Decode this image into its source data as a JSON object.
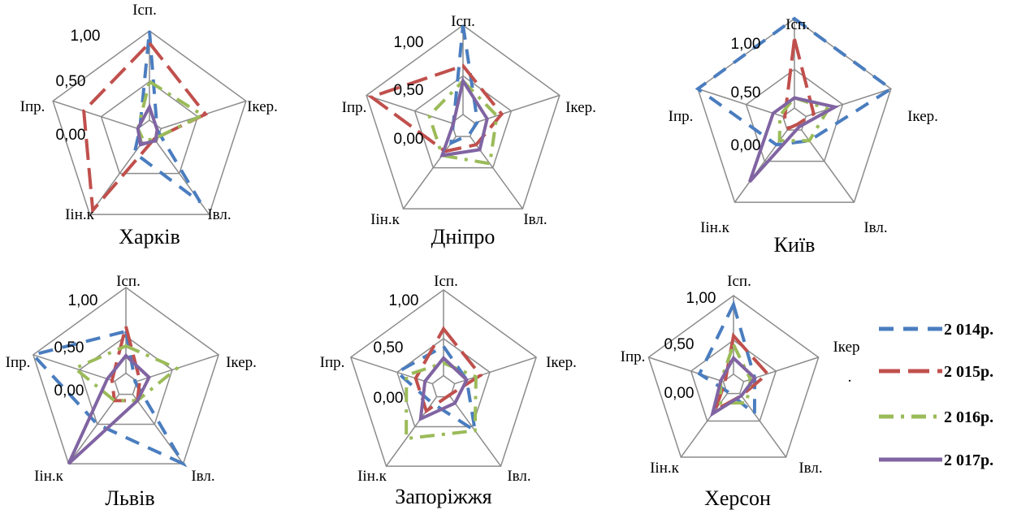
{
  "chart_data": {
    "type": "radar",
    "axes": [
      "Ісп.",
      "Ікер.",
      "Івл.",
      "Ін.к",
      "Іпр."
    ],
    "tick_labels": [
      "1,00",
      "0,50",
      "0,00"
    ],
    "rlim": [
      0,
      1
    ],
    "legend_position": "right",
    "series_style": [
      {
        "name": "2 014р.",
        "color": "#4a7dbf",
        "dash": "dashed"
      },
      {
        "name": "2 015р.",
        "color": "#c0504d",
        "dash": "longdash"
      },
      {
        "name": "2 016р.",
        "color": "#9bbb59",
        "dash": "dashdot"
      },
      {
        "name": "2 017р.",
        "color": "#8064a2",
        "dash": "solid"
      }
    ],
    "charts": [
      {
        "title": "Харків",
        "axis_labels": [
          "Ісп.",
          "Ікер.",
          "Івл.",
          "Іін.к",
          "Іпр."
        ],
        "series": [
          {
            "name": "2 014р.",
            "values": [
              1.0,
              0.08,
              0.85,
              0.25,
              0.1
            ]
          },
          {
            "name": "2 015р.",
            "values": [
              0.88,
              0.58,
              0.08,
              0.95,
              0.68
            ]
          },
          {
            "name": "2 016р.",
            "values": [
              0.5,
              0.55,
              0.08,
              0.1,
              0.12
            ]
          },
          {
            "name": "2 017р.",
            "values": [
              0.25,
              0.08,
              0.1,
              0.15,
              0.12
            ]
          }
        ]
      },
      {
        "title": "Дніпро",
        "axis_labels": [
          "Ісп.",
          "Ікер.",
          "Івл.",
          "Іін.к",
          "Іпр."
        ],
        "series": [
          {
            "name": "2 014р.",
            "values": [
              1.0,
              0.15,
              0.1,
              0.2,
              0.1
            ]
          },
          {
            "name": "2 015р.",
            "values": [
              0.6,
              0.4,
              0.22,
              0.3,
              0.95
            ]
          },
          {
            "name": "2 016р.",
            "values": [
              0.45,
              0.35,
              0.45,
              0.35,
              0.35
            ]
          },
          {
            "name": "2 017р.",
            "values": [
              0.45,
              0.25,
              0.28,
              0.35,
              0.1
            ]
          }
        ]
      },
      {
        "title": "Київ",
        "axis_labels": [
          "Ісп.",
          "Ікер.",
          "Івл.",
          "Іін.к",
          "Іпр."
        ],
        "series": [
          {
            "name": "2 014р.",
            "values": [
              1.0,
              1.0,
              0.25,
              0.3,
              1.0
            ]
          },
          {
            "name": "2 015р.",
            "values": [
              0.8,
              0.2,
              0.05,
              0.1,
              0.1
            ]
          },
          {
            "name": "2 016р.",
            "values": [
              0.22,
              0.35,
              0.25,
              0.25,
              0.15
            ]
          },
          {
            "name": "2 017р.",
            "values": [
              0.22,
              0.42,
              0.08,
              0.75,
              0.22
            ]
          }
        ]
      },
      {
        "title": "Львів",
        "axis_labels": [
          "Ісп.",
          "Ікер.",
          "Івл.",
          "Іін.к",
          "Іпр."
        ],
        "series": [
          {
            "name": "2 014р.",
            "values": [
              0.55,
              0.1,
              1.0,
              0.5,
              1.0
            ]
          },
          {
            "name": "2 015р.",
            "values": [
              0.6,
              0.15,
              0.2,
              0.2,
              0.15
            ]
          },
          {
            "name": "2 016р.",
            "values": [
              0.4,
              0.55,
              0.2,
              0.2,
              0.55
            ]
          },
          {
            "name": "2 017р.",
            "values": [
              0.3,
              0.25,
              0.2,
              1.0,
              0.2
            ]
          }
        ]
      },
      {
        "title": "Запоріжжя",
        "axis_labels": [
          "Ісп.",
          "Ікер.",
          "Івл.",
          "Іін.к",
          "Іпр."
        ],
        "series": [
          {
            "name": "2 014р.",
            "values": [
              0.42,
              0.25,
              0.55,
              0.2,
              0.5
            ]
          },
          {
            "name": "2 015р.",
            "values": [
              0.6,
              0.4,
              0.1,
              0.3,
              0.3
            ]
          },
          {
            "name": "2 016р.",
            "values": [
              0.25,
              0.35,
              0.55,
              0.65,
              0.4
            ]
          },
          {
            "name": "2 017р.",
            "values": [
              0.3,
              0.25,
              0.2,
              0.4,
              0.2
            ]
          }
        ]
      },
      {
        "title": "Херсон",
        "axis_labels": [
          "Ісп.",
          "Ікер",
          "Івл.",
          "Іін.к",
          "Іпр."
        ],
        "series": [
          {
            "name": "2 014р.",
            "values": [
              0.9,
              0.25,
              0.4,
              0.1,
              0.4
            ]
          },
          {
            "name": "2 015р.",
            "values": [
              0.55,
              0.4,
              0.15,
              0.35,
              0.1
            ]
          },
          {
            "name": "2 016р.",
            "values": [
              0.45,
              0.2,
              0.25,
              0.25,
              0.15
            ]
          },
          {
            "name": "2 017р.",
            "values": [
              0.3,
              0.25,
              0.15,
              0.4,
              0.15
            ]
          }
        ]
      }
    ]
  },
  "legend": {
    "ikep_tail": "."
  }
}
